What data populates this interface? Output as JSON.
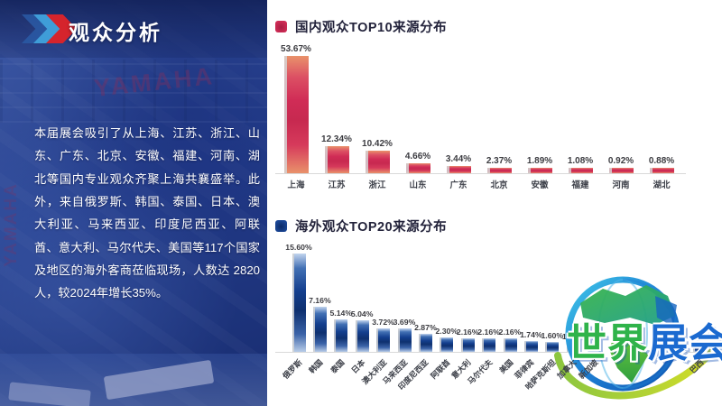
{
  "header": {
    "title": "观众分析"
  },
  "intro": {
    "text": "本届展会吸引了从上海、江苏、浙江、山东、广东、北京、安徽、福建、河南、湖北等国内专业观众齐聚上海共襄盛举。此外，来自俄罗斯、韩国、泰国、日本、澳大利亚、马来西亚、印度尼西亚、阿联酋、意大利、马尔代夫、美国等117个国家及地区的海外客商莅临现场，人数达 2820人，较2024年增长35%。"
  },
  "background": {
    "brand_text": "YAMAHA"
  },
  "watermark": {
    "text_green": "世界",
    "text_blue": "展会"
  },
  "colors": {
    "accent_red": "#c9234f",
    "accent_blue": "#1c4693",
    "panel_tint": "#1e3a8f",
    "chart_title_text": "#23233b",
    "value_label_text": "#3b3b40",
    "axis_line": "#d9d9d9"
  },
  "chart_data": [
    {
      "type": "bar",
      "title": "国内观众TOP10来源分布",
      "categories": [
        "上海",
        "江苏",
        "浙江",
        "山东",
        "广东",
        "北京",
        "安徽",
        "福建",
        "河南",
        "湖北"
      ],
      "values": [
        53.67,
        12.34,
        10.42,
        4.66,
        3.44,
        2.37,
        1.89,
        1.08,
        0.92,
        0.88
      ],
      "value_labels": [
        "53.67%",
        "12.34%",
        "10.42%",
        "4.66%",
        "3.44%",
        "2.37%",
        "1.89%",
        "1.08%",
        "0.92%",
        "0.88%"
      ],
      "unit": "percent",
      "bar_color": "#d02c56",
      "legend_color": "#c9234f",
      "ylim": [
        0,
        60
      ],
      "grid": false,
      "legend_position": "top-left"
    },
    {
      "type": "bar",
      "title": "海外观众TOP20来源分布",
      "categories": [
        "俄罗斯",
        "韩国",
        "泰国",
        "日本",
        "澳大利亚",
        "马来西亚",
        "印度尼西亚",
        "阿联酋",
        "意大利",
        "马尔代夫",
        "美国",
        "菲律宾",
        "哈萨克斯坦",
        "加拿大",
        "新加坡",
        "",
        "",
        "",
        "",
        "巴西"
      ],
      "values": [
        15.6,
        7.16,
        5.14,
        5.04,
        3.72,
        3.69,
        2.87,
        2.3,
        2.16,
        2.16,
        2.16,
        1.74,
        1.6,
        1.46,
        1.44,
        1.35,
        1.25,
        1.15,
        1.05,
        0.95
      ],
      "value_labels": [
        "15.60%",
        "7.16%",
        "5.14%",
        "5.04%",
        "3.72%",
        "3.69%",
        "2.87%",
        "2.30%",
        "2.16%",
        "2.16%",
        "2.16%",
        "1.74%",
        "1.60%",
        "1.46%",
        "1.44%",
        "",
        "",
        "",
        "",
        ""
      ],
      "unit": "percent",
      "bar_color": "#143f8e",
      "legend_color": "#1c4693",
      "ylim": [
        0,
        17
      ],
      "grid": false,
      "legend_position": "top-left",
      "note": "bars 16-19 and their labels are obscured by the 世界展会 watermark logo; obscured values estimated from bar heights"
    }
  ]
}
